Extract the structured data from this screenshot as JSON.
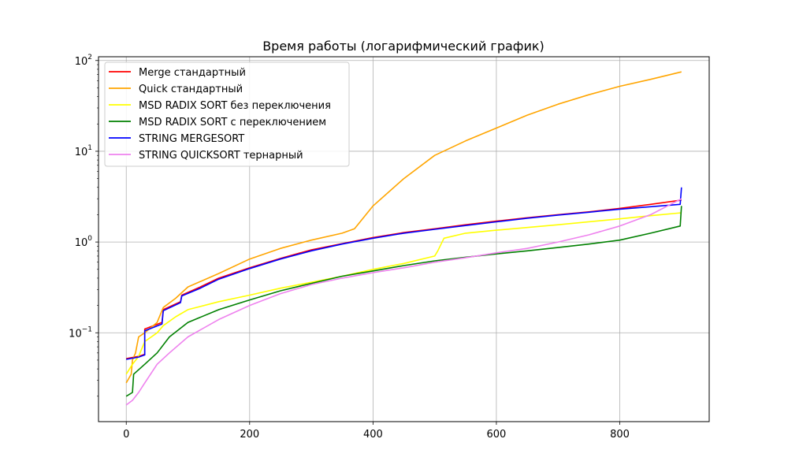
{
  "chart_data": {
    "type": "line",
    "title": "Время работы (логарифмический график)",
    "xlabel": "",
    "ylabel": "",
    "xlim": [
      -45,
      945
    ],
    "ylim": [
      0.0105,
      110
    ],
    "yscale": "log",
    "grid": true,
    "legend_position": "top-left",
    "x_ticks": [
      {
        "value": 0,
        "label": "0"
      },
      {
        "value": 200,
        "label": "200"
      },
      {
        "value": 400,
        "label": "400"
      },
      {
        "value": 600,
        "label": "600"
      },
      {
        "value": 800,
        "label": "800"
      }
    ],
    "y_ticks": [
      {
        "value": 0.1,
        "base": "10",
        "exp": "−1"
      },
      {
        "value": 1,
        "base": "10",
        "exp": "0"
      },
      {
        "value": 10,
        "base": "10",
        "exp": "1"
      },
      {
        "value": 100,
        "base": "10",
        "exp": "2"
      }
    ],
    "series": [
      {
        "name": "Merge стандартный",
        "color": "#ff0000",
        "points": [
          [
            0,
            0.052
          ],
          [
            20,
            0.055
          ],
          [
            30,
            0.058
          ],
          [
            30,
            0.11
          ],
          [
            58,
            0.13
          ],
          [
            60,
            0.18
          ],
          [
            88,
            0.22
          ],
          [
            90,
            0.26
          ],
          [
            120,
            0.32
          ],
          [
            150,
            0.4
          ],
          [
            200,
            0.52
          ],
          [
            250,
            0.66
          ],
          [
            300,
            0.82
          ],
          [
            350,
            0.96
          ],
          [
            400,
            1.12
          ],
          [
            450,
            1.27
          ],
          [
            500,
            1.4
          ],
          [
            550,
            1.55
          ],
          [
            600,
            1.7
          ],
          [
            650,
            1.85
          ],
          [
            700,
            2.0
          ],
          [
            750,
            2.15
          ],
          [
            800,
            2.35
          ],
          [
            850,
            2.6
          ],
          [
            900,
            2.9
          ]
        ]
      },
      {
        "name": "Quick стандартный",
        "color": "#ffa500",
        "points": [
          [
            0,
            0.028
          ],
          [
            8,
            0.035
          ],
          [
            10,
            0.05
          ],
          [
            15,
            0.06
          ],
          [
            20,
            0.09
          ],
          [
            30,
            0.1
          ],
          [
            50,
            0.13
          ],
          [
            60,
            0.19
          ],
          [
            80,
            0.24
          ],
          [
            100,
            0.32
          ],
          [
            150,
            0.45
          ],
          [
            200,
            0.65
          ],
          [
            250,
            0.85
          ],
          [
            300,
            1.05
          ],
          [
            350,
            1.25
          ],
          [
            370,
            1.4
          ],
          [
            380,
            1.7
          ],
          [
            400,
            2.5
          ],
          [
            450,
            5.0
          ],
          [
            500,
            9.0
          ],
          [
            550,
            13.0
          ],
          [
            600,
            18.0
          ],
          [
            650,
            25.0
          ],
          [
            700,
            33.0
          ],
          [
            750,
            42.0
          ],
          [
            800,
            52.0
          ],
          [
            850,
            62.0
          ],
          [
            900,
            75.0
          ]
        ]
      },
      {
        "name": "MSD RADIX SORT без переключения",
        "color": "#ffff00",
        "points": [
          [
            0,
            0.035
          ],
          [
            10,
            0.045
          ],
          [
            20,
            0.055
          ],
          [
            30,
            0.08
          ],
          [
            50,
            0.1
          ],
          [
            60,
            0.12
          ],
          [
            80,
            0.15
          ],
          [
            100,
            0.18
          ],
          [
            150,
            0.22
          ],
          [
            200,
            0.26
          ],
          [
            250,
            0.31
          ],
          [
            300,
            0.36
          ],
          [
            350,
            0.42
          ],
          [
            400,
            0.5
          ],
          [
            450,
            0.58
          ],
          [
            500,
            0.7
          ],
          [
            505,
            0.8
          ],
          [
            515,
            1.1
          ],
          [
            550,
            1.25
          ],
          [
            600,
            1.35
          ],
          [
            700,
            1.55
          ],
          [
            800,
            1.8
          ],
          [
            850,
            1.95
          ],
          [
            900,
            2.1
          ]
        ]
      },
      {
        "name": "MSD RADIX SORT с переключением",
        "color": "#008000",
        "points": [
          [
            0,
            0.02
          ],
          [
            10,
            0.022
          ],
          [
            12,
            0.035
          ],
          [
            30,
            0.045
          ],
          [
            50,
            0.06
          ],
          [
            70,
            0.09
          ],
          [
            100,
            0.13
          ],
          [
            150,
            0.18
          ],
          [
            200,
            0.23
          ],
          [
            250,
            0.29
          ],
          [
            300,
            0.35
          ],
          [
            350,
            0.42
          ],
          [
            400,
            0.48
          ],
          [
            450,
            0.55
          ],
          [
            500,
            0.62
          ],
          [
            550,
            0.68
          ],
          [
            600,
            0.74
          ],
          [
            650,
            0.8
          ],
          [
            700,
            0.87
          ],
          [
            750,
            0.95
          ],
          [
            800,
            1.05
          ],
          [
            850,
            1.25
          ],
          [
            898,
            1.5
          ],
          [
            900,
            2.5
          ]
        ]
      },
      {
        "name": "STRING MERGESORT",
        "color": "#0000ff",
        "points": [
          [
            0,
            0.051
          ],
          [
            20,
            0.054
          ],
          [
            30,
            0.057
          ],
          [
            30,
            0.105
          ],
          [
            58,
            0.125
          ],
          [
            60,
            0.175
          ],
          [
            88,
            0.215
          ],
          [
            90,
            0.255
          ],
          [
            120,
            0.31
          ],
          [
            150,
            0.39
          ],
          [
            200,
            0.51
          ],
          [
            250,
            0.65
          ],
          [
            300,
            0.8
          ],
          [
            350,
            0.95
          ],
          [
            400,
            1.1
          ],
          [
            450,
            1.25
          ],
          [
            500,
            1.38
          ],
          [
            550,
            1.52
          ],
          [
            600,
            1.67
          ],
          [
            650,
            1.83
          ],
          [
            700,
            1.98
          ],
          [
            750,
            2.13
          ],
          [
            800,
            2.3
          ],
          [
            850,
            2.45
          ],
          [
            898,
            2.6
          ],
          [
            900,
            4.0
          ]
        ]
      },
      {
        "name": "STRING QUICKSORT тернарный",
        "color": "#ee82ee",
        "points": [
          [
            0,
            0.016
          ],
          [
            10,
            0.018
          ],
          [
            20,
            0.022
          ],
          [
            30,
            0.028
          ],
          [
            50,
            0.045
          ],
          [
            70,
            0.06
          ],
          [
            100,
            0.09
          ],
          [
            150,
            0.14
          ],
          [
            200,
            0.2
          ],
          [
            250,
            0.27
          ],
          [
            300,
            0.34
          ],
          [
            350,
            0.4
          ],
          [
            400,
            0.46
          ],
          [
            450,
            0.52
          ],
          [
            500,
            0.6
          ],
          [
            550,
            0.67
          ],
          [
            600,
            0.76
          ],
          [
            650,
            0.85
          ],
          [
            700,
            1.0
          ],
          [
            750,
            1.2
          ],
          [
            800,
            1.5
          ],
          [
            850,
            2.0
          ],
          [
            900,
            3.0
          ]
        ]
      }
    ]
  }
}
